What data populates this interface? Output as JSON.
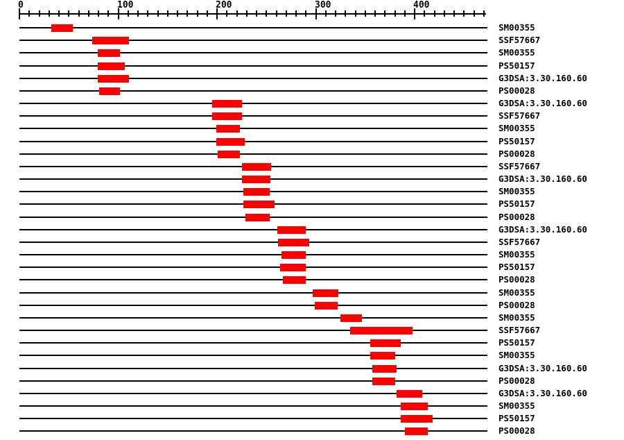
{
  "page": {
    "background": "#ffffff"
  },
  "colors": {
    "bar": "#ff0000",
    "axis": "#000000",
    "text": "#000000",
    "background": "#ffffff"
  },
  "chart_data": {
    "type": "bar",
    "variant": "protein-domain-feature-map",
    "orientation": "horizontal",
    "title": "",
    "xlabel": "",
    "ylabel": "",
    "grid": false,
    "legend": false,
    "x_axis": {
      "min": 0,
      "max": 470,
      "major_tick_step": 100,
      "minor_tick_step": 10,
      "tick_labels": [
        "0",
        "100",
        "200",
        "300",
        "400"
      ]
    },
    "rows": [
      {
        "label": "SM00355",
        "start": 32,
        "end": 54
      },
      {
        "label": "SSF57667",
        "start": 74,
        "end": 111
      },
      {
        "label": "SM00355",
        "start": 79,
        "end": 102
      },
      {
        "label": "PS50157",
        "start": 79,
        "end": 107
      },
      {
        "label": "G3DSA:3.30.160.60",
        "start": 79,
        "end": 111
      },
      {
        "label": "PS00028",
        "start": 81,
        "end": 102
      },
      {
        "label": "G3DSA:3.30.160.60",
        "start": 195,
        "end": 225
      },
      {
        "label": "SSF57667",
        "start": 195,
        "end": 225
      },
      {
        "label": "SM00355",
        "start": 199,
        "end": 223
      },
      {
        "label": "PS50157",
        "start": 199,
        "end": 228
      },
      {
        "label": "PS00028",
        "start": 201,
        "end": 223
      },
      {
        "label": "SSF57667",
        "start": 225,
        "end": 255
      },
      {
        "label": "G3DSA:3.30.160.60",
        "start": 225,
        "end": 254
      },
      {
        "label": "SM00355",
        "start": 227,
        "end": 253
      },
      {
        "label": "PS50157",
        "start": 227,
        "end": 258
      },
      {
        "label": "PS00028",
        "start": 229,
        "end": 253
      },
      {
        "label": "G3DSA:3.30.160.60",
        "start": 261,
        "end": 290
      },
      {
        "label": "SSF57667",
        "start": 262,
        "end": 293
      },
      {
        "label": "SM00355",
        "start": 265,
        "end": 290
      },
      {
        "label": "PS50157",
        "start": 264,
        "end": 290
      },
      {
        "label": "PS00028",
        "start": 267,
        "end": 290
      },
      {
        "label": "SM00355",
        "start": 297,
        "end": 323
      },
      {
        "label": "PS00028",
        "start": 299,
        "end": 322
      },
      {
        "label": "SM00355",
        "start": 325,
        "end": 347
      },
      {
        "label": "SSF57667",
        "start": 335,
        "end": 398
      },
      {
        "label": "PS50157",
        "start": 355,
        "end": 386
      },
      {
        "label": "SM00355",
        "start": 355,
        "end": 380
      },
      {
        "label": "G3DSA:3.30.160.60",
        "start": 357,
        "end": 382
      },
      {
        "label": "PS00028",
        "start": 357,
        "end": 380
      },
      {
        "label": "G3DSA:3.30.160.60",
        "start": 382,
        "end": 408
      },
      {
        "label": "SM00355",
        "start": 386,
        "end": 413
      },
      {
        "label": "PS50157",
        "start": 386,
        "end": 418
      },
      {
        "label": "PS00028",
        "start": 390,
        "end": 413
      }
    ]
  }
}
